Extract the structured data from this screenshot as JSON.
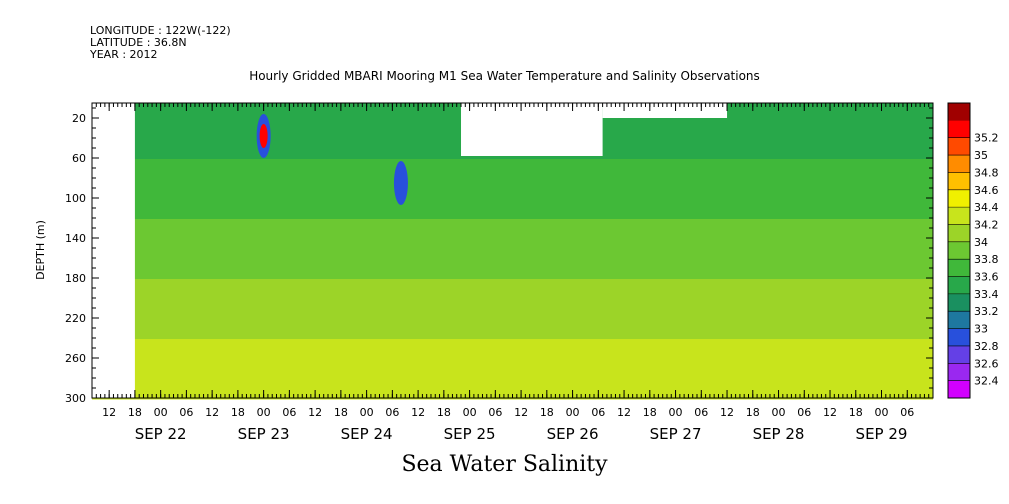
{
  "header": {
    "longitude": "LONGITUDE : 122W(-122)",
    "latitude": "LATITUDE : 36.8N",
    "year": "YEAR : 2012"
  },
  "chart_data": {
    "type": "heatmap",
    "title": "Hourly Gridded MBARI Mooring M1 Sea Water Temperature and Salinity Observations",
    "xlabel": "Sea Water Salinity",
    "ylabel": "DEPTH (m)",
    "xlim": [
      "2012-09-21T08:00",
      "2012-09-29T12:00"
    ],
    "ylim": [
      300,
      5
    ],
    "y_inverted": true,
    "y_ticks": [
      20,
      60,
      100,
      140,
      180,
      220,
      260,
      300
    ],
    "x_hour_ticks": [
      {
        "t": "2012-09-21T12:00",
        "label": "12"
      },
      {
        "t": "2012-09-21T18:00",
        "label": "18"
      },
      {
        "t": "2012-09-22T00:00",
        "label": "00"
      },
      {
        "t": "2012-09-22T06:00",
        "label": "06"
      },
      {
        "t": "2012-09-22T12:00",
        "label": "12"
      },
      {
        "t": "2012-09-22T18:00",
        "label": "18"
      },
      {
        "t": "2012-09-23T00:00",
        "label": "00"
      },
      {
        "t": "2012-09-23T06:00",
        "label": "06"
      },
      {
        "t": "2012-09-23T12:00",
        "label": "12"
      },
      {
        "t": "2012-09-23T18:00",
        "label": "18"
      },
      {
        "t": "2012-09-24T00:00",
        "label": "00"
      },
      {
        "t": "2012-09-24T06:00",
        "label": "06"
      },
      {
        "t": "2012-09-24T12:00",
        "label": "12"
      },
      {
        "t": "2012-09-24T18:00",
        "label": "18"
      },
      {
        "t": "2012-09-25T00:00",
        "label": "00"
      },
      {
        "t": "2012-09-25T06:00",
        "label": "06"
      },
      {
        "t": "2012-09-25T12:00",
        "label": "12"
      },
      {
        "t": "2012-09-25T18:00",
        "label": "18"
      },
      {
        "t": "2012-09-26T00:00",
        "label": "00"
      },
      {
        "t": "2012-09-26T06:00",
        "label": "06"
      },
      {
        "t": "2012-09-26T12:00",
        "label": "12"
      },
      {
        "t": "2012-09-26T18:00",
        "label": "18"
      },
      {
        "t": "2012-09-27T00:00",
        "label": "00"
      },
      {
        "t": "2012-09-27T06:00",
        "label": "06"
      },
      {
        "t": "2012-09-27T12:00",
        "label": "12"
      },
      {
        "t": "2012-09-27T18:00",
        "label": "18"
      },
      {
        "t": "2012-09-28T00:00",
        "label": "00"
      },
      {
        "t": "2012-09-28T06:00",
        "label": "06"
      },
      {
        "t": "2012-09-28T12:00",
        "label": "12"
      },
      {
        "t": "2012-09-28T18:00",
        "label": "18"
      },
      {
        "t": "2012-09-29T00:00",
        "label": "00"
      },
      {
        "t": "2012-09-29T06:00",
        "label": "06"
      }
    ],
    "x_day_labels": [
      {
        "t": "2012-09-22T00:00",
        "label": "SEP 22"
      },
      {
        "t": "2012-09-23T00:00",
        "label": "SEP 23"
      },
      {
        "t": "2012-09-24T00:00",
        "label": "SEP 24"
      },
      {
        "t": "2012-09-25T00:00",
        "label": "SEP 25"
      },
      {
        "t": "2012-09-26T00:00",
        "label": "SEP 26"
      },
      {
        "t": "2012-09-27T00:00",
        "label": "SEP 27"
      },
      {
        "t": "2012-09-28T00:00",
        "label": "SEP 28"
      },
      {
        "t": "2012-09-29T00:00",
        "label": "SEP 29"
      }
    ],
    "colorbar": {
      "levels": [
        32.4,
        32.6,
        32.8,
        33,
        33.2,
        33.4,
        33.6,
        33.8,
        34,
        34.2,
        34.4,
        34.6,
        34.8,
        35,
        35.2
      ],
      "labels": [
        "32.4",
        "32.6",
        "32.8",
        "33",
        "33.2",
        "33.4",
        "33.6",
        "33.8",
        "34",
        "34.2",
        "34.4",
        "34.6",
        "34.8",
        "35",
        "35.2"
      ],
      "colors": [
        "#d200ff",
        "#9a28f0",
        "#6440e6",
        "#2850dc",
        "#1e78a0",
        "#1a9060",
        "#28a84a",
        "#40b83a",
        "#6cc832",
        "#9cd428",
        "#c8e41c",
        "#f0f000",
        "#ffc000",
        "#ff8c00",
        "#ff4a00",
        "#ff0000",
        "#a00000"
      ]
    },
    "data_gaps": [
      {
        "t0": "2012-09-21T08:00",
        "t1": "2012-09-21T18:00",
        "depth0": 5,
        "depth1": 300
      },
      {
        "t0": "2012-09-24T22:00",
        "t1": "2012-09-26T07:00",
        "depth0": 5,
        "depth1": 20
      },
      {
        "t0": "2012-09-24T22:00",
        "t1": "2012-09-26T07:00",
        "depth0": 20,
        "depth1": 58
      },
      {
        "t0": "2012-09-26T07:00",
        "t1": "2012-09-27T12:00",
        "depth0": 5,
        "depth1": 20
      }
    ],
    "anomalies": [
      {
        "t": "2012-09-23T00:00",
        "depth": 38,
        "salinity": 35.2
      },
      {
        "t": "2012-09-24T08:00",
        "depth": 85,
        "salinity": 32.8
      }
    ],
    "salinity_profile": [
      {
        "depth": 20,
        "salinity": 33.5
      },
      {
        "depth": 60,
        "salinity": 33.6
      },
      {
        "depth": 100,
        "salinity": 33.7
      },
      {
        "depth": 140,
        "salinity": 33.9
      },
      {
        "depth": 180,
        "salinity": 34.0
      },
      {
        "depth": 220,
        "salinity": 34.1
      },
      {
        "depth": 260,
        "salinity": 34.3
      },
      {
        "depth": 300,
        "salinity": 34.3
      }
    ]
  }
}
